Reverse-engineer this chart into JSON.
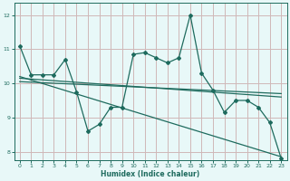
{
  "title": "",
  "xlabel": "Humidex (Indice chaleur)",
  "bg_color": "#e8f8f8",
  "plot_bg_color": "#e8f8f8",
  "grid_color": "#d0b8b8",
  "line_color": "#1e6b5e",
  "xlim": [
    -0.5,
    23.5
  ],
  "ylim": [
    7.75,
    12.35
  ],
  "xticks": [
    0,
    1,
    2,
    3,
    4,
    5,
    6,
    7,
    8,
    9,
    10,
    11,
    12,
    13,
    14,
    15,
    16,
    17,
    18,
    19,
    20,
    21,
    22,
    23
  ],
  "yticks": [
    8,
    9,
    10,
    11,
    12
  ],
  "main_x": [
    0,
    1,
    2,
    3,
    4,
    5,
    6,
    7,
    8,
    9,
    10,
    11,
    12,
    13,
    14,
    15,
    16,
    17,
    18,
    19,
    20,
    21,
    22,
    23
  ],
  "main_y": [
    11.1,
    10.25,
    10.25,
    10.25,
    10.7,
    9.75,
    8.6,
    8.8,
    9.3,
    9.3,
    10.85,
    10.9,
    10.75,
    10.6,
    10.75,
    12.0,
    10.3,
    9.8,
    9.15,
    9.5,
    9.5,
    9.3,
    8.85,
    7.8
  ],
  "trend1_x": [
    0,
    23
  ],
  "trend1_y": [
    10.15,
    9.6
  ],
  "trend2_x": [
    0,
    23
  ],
  "trend2_y": [
    10.2,
    7.85
  ],
  "trend3_x": [
    0,
    23
  ],
  "trend3_y": [
    10.05,
    9.7
  ]
}
